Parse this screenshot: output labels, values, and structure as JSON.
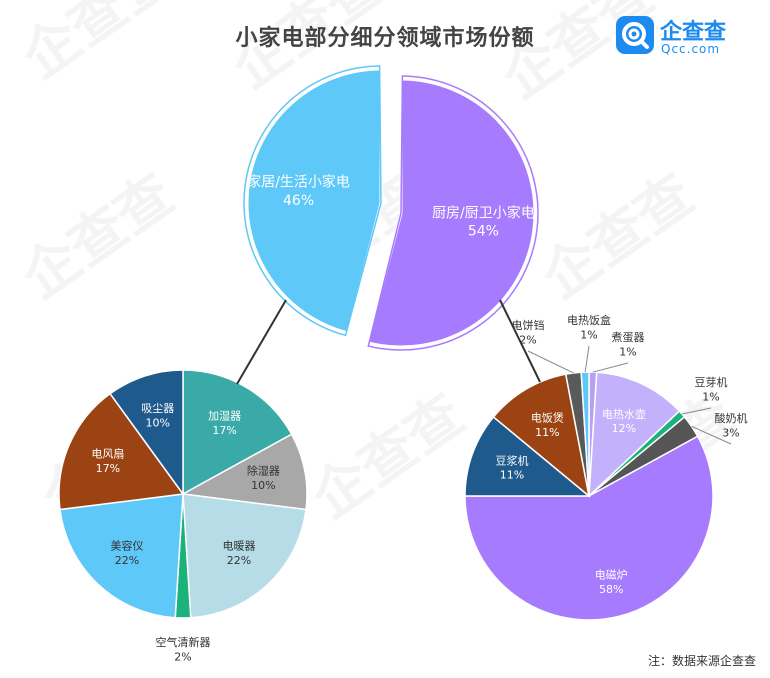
{
  "title": "小家电部分细分领域市场份额",
  "logo": {
    "name": "企查查",
    "sub": "Qcc.com"
  },
  "watermark": "企查查",
  "note": "注：数据来源企查查",
  "colors": {
    "kitchen": "#a77bfe",
    "home": "#5ec8f8",
    "connector": "#333333"
  },
  "chart_data": [
    {
      "type": "pie",
      "name": "main",
      "labels": [
        "厨房/厨卫小家电",
        "家居/生活小家电"
      ],
      "values": [
        54,
        46
      ],
      "display": [
        "54%",
        "46%"
      ],
      "colors": [
        "#a77bfe",
        "#5ec8f8"
      ]
    },
    {
      "type": "pie",
      "name": "home",
      "labels": [
        "加湿器",
        "除湿器",
        "电暖器",
        "空气清新器",
        "美容仪",
        "电风扇",
        "吸尘器"
      ],
      "values": [
        17,
        10,
        22,
        2,
        22,
        17,
        10
      ],
      "display": [
        "17%",
        "10%",
        "22%",
        "2%",
        "22%",
        "17%",
        "10%"
      ],
      "colors": [
        "#3aaaa8",
        "#a8a8a8",
        "#b5dce7",
        "#1bb27c",
        "#5ec8f8",
        "#9b4312",
        "#1f5a8c"
      ]
    },
    {
      "type": "pie",
      "name": "kitchen",
      "labels": [
        "煮蛋器",
        "电热水壶",
        "豆芽机",
        "酸奶机",
        "电磁炉",
        "豆浆机",
        "电饭煲",
        "电饼铛",
        "电热饭盒"
      ],
      "values": [
        1,
        12,
        1,
        3,
        58,
        11,
        11,
        2,
        1
      ],
      "display": [
        "1%",
        "12%",
        "1%",
        "3%",
        "58%",
        "11%",
        "11%",
        "2%",
        "1%"
      ],
      "colors": [
        "#b8a0f0",
        "#c4b1fb",
        "#1bb27c",
        "#555555",
        "#a77bfe",
        "#1f5a8c",
        "#9b4312",
        "#5a5a5a",
        "#5ec8f8"
      ]
    }
  ]
}
